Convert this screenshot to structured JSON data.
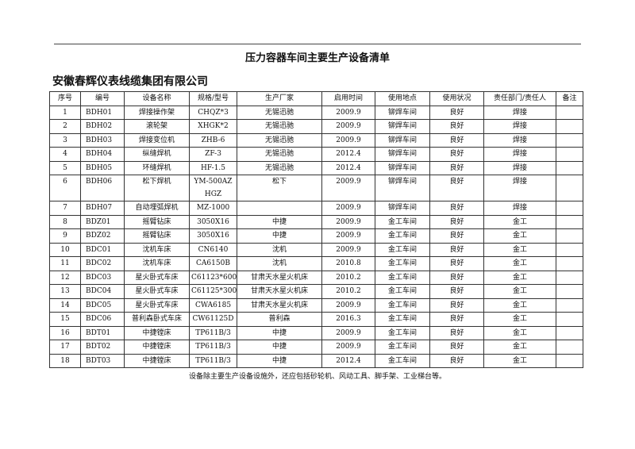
{
  "title": "压力容器车间主要生产设备清单",
  "company": "安徽春辉仪表线缆集团有限公司",
  "columns": [
    "序号",
    "编号",
    "设备名称",
    "规格/型号",
    "生产厂家",
    "启用时间",
    "使用地点",
    "使用状况",
    "责任部门/责任人",
    "备注"
  ],
  "rows": [
    [
      "1",
      "BDH01",
      "焊接操作架",
      "CHQZ*3",
      "无锡迅驰",
      "2009.9",
      "铆焊车间",
      "良好",
      "焊接",
      ""
    ],
    [
      "2",
      "BDH02",
      "滚轮架",
      "XHGK*2",
      "无锡迅驰",
      "2009.9",
      "铆焊车间",
      "良好",
      "焊接",
      ""
    ],
    [
      "3",
      "BDH03",
      "焊接变位机",
      "ZHB-6",
      "无锡迅驰",
      "2009.9",
      "铆焊车间",
      "良好",
      "焊接",
      ""
    ],
    [
      "4",
      "BDH04",
      "纵缝焊机",
      "ZF-3",
      "无锡迅驰",
      "2012.4",
      "铆焊车间",
      "良好",
      "焊接",
      ""
    ],
    [
      "5",
      "BDH05",
      "环缝焊机",
      "HF-1.5",
      "无锡迅驰",
      "2012.4",
      "铆焊车间",
      "良好",
      "焊接",
      ""
    ],
    [
      "6",
      "BDH06",
      "松下焊机",
      "YM-500AZHGZ",
      "松下",
      "2009.9",
      "铆焊车间",
      "良好",
      "焊接",
      ""
    ],
    [
      "7",
      "BDH07",
      "自动埋弧焊机",
      "MZ-1000",
      "",
      "2009.9",
      "铆焊车间",
      "良好",
      "焊接",
      ""
    ],
    [
      "8",
      "BDZ01",
      "摇臂钻床",
      "3050X16",
      "中捷",
      "2009.9",
      "金工车间",
      "良好",
      "金工",
      ""
    ],
    [
      "9",
      "BDZ02",
      "摇臂钻床",
      "3050X16",
      "中捷",
      "2009.9",
      "金工车间",
      "良好",
      "金工",
      ""
    ],
    [
      "10",
      "BDC01",
      "沈机车床",
      "CN6140",
      "沈机",
      "2009.9",
      "金工车间",
      "良好",
      "金工",
      ""
    ],
    [
      "11",
      "BDC02",
      "沈机车床",
      "CA6150B",
      "沈机",
      "2010.8",
      "金工车间",
      "良好",
      "金工",
      ""
    ],
    [
      "12",
      "BDC03",
      "星火卧式车床",
      "C61123*600",
      "甘肃天水星火机床",
      "2010.2",
      "金工车间",
      "良好",
      "金工",
      ""
    ],
    [
      "13",
      "BDC04",
      "星火卧式车床",
      "C61125*300",
      "甘肃天水星火机床",
      "2010.2",
      "金工车间",
      "良好",
      "金工",
      ""
    ],
    [
      "14",
      "BDC05",
      "星火卧式车床",
      "CWA6185",
      "甘肃天水星火机床",
      "2009.9",
      "金工车间",
      "良好",
      "金工",
      ""
    ],
    [
      "15",
      "BDC06",
      "普利森卧式车床",
      "CW61125D",
      "普利森",
      "2016.3",
      "金工车间",
      "良好",
      "金工",
      ""
    ],
    [
      "16",
      "BDT01",
      "中捷镗床",
      "TP611B/3",
      "中捷",
      "2009.9",
      "金工车间",
      "良好",
      "金工",
      ""
    ],
    [
      "17",
      "BDT02",
      "中捷镗床",
      "TP611B/3",
      "中捷",
      "2009.9",
      "金工车间",
      "良好",
      "金工",
      ""
    ],
    [
      "18",
      "BDT03",
      "中捷镗床",
      "TP611B/3",
      "中捷",
      "2012.4",
      "金工车间",
      "良好",
      "金工",
      ""
    ]
  ],
  "footer": "设备除主要生产设备设施外，还应包括砂轮机、风动工具、脚手架、工业梯台等。"
}
